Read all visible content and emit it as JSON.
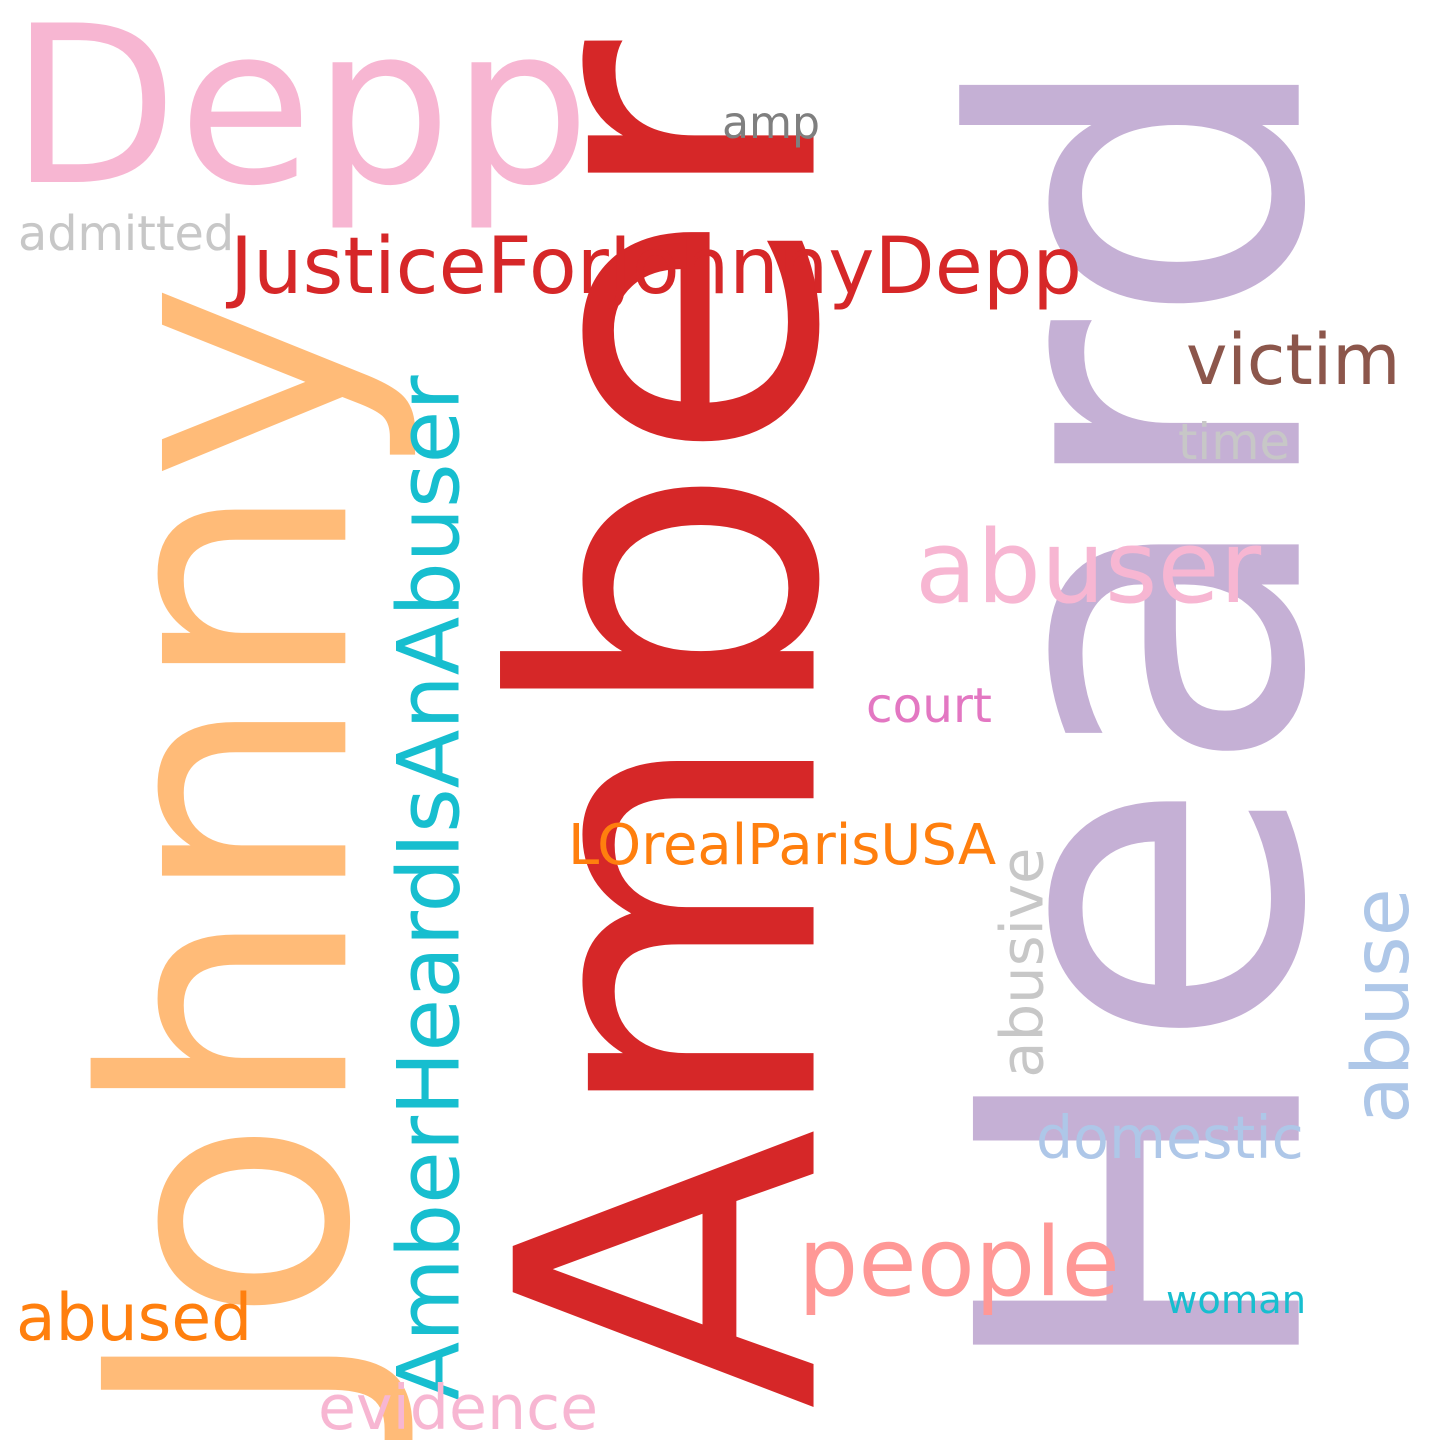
{
  "word_cloud": {
    "words": [
      {
        "text": "Amber",
        "color": "#d62728",
        "vertical": true
      },
      {
        "text": "Heard",
        "color": "#c5b0d5",
        "vertical": true
      },
      {
        "text": "Johnny",
        "color": "#ffbb78",
        "vertical": true
      },
      {
        "text": "Depp",
        "color": "#f7b6d2",
        "vertical": false
      },
      {
        "text": "JusticeForJohnnyDepp",
        "color": "#d62728",
        "vertical": false
      },
      {
        "text": "AmberHeardIsAnAbuser",
        "color": "#17becf",
        "vertical": true
      },
      {
        "text": "abuser",
        "color": "#f7b6d2",
        "vertical": false
      },
      {
        "text": "victim",
        "color": "#8c564b",
        "vertical": false
      },
      {
        "text": "people",
        "color": "#ff9896",
        "vertical": false
      },
      {
        "text": "abused",
        "color": "#ff7f0e",
        "vertical": false
      },
      {
        "text": "LOrealParisUSA",
        "color": "#ff7f0e",
        "vertical": false
      },
      {
        "text": "abuse",
        "color": "#aec7e8",
        "vertical": true
      },
      {
        "text": "domestic",
        "color": "#aec7e8",
        "vertical": false
      },
      {
        "text": "abusive",
        "color": "#c7c7c7",
        "vertical": true
      },
      {
        "text": "amp",
        "color": "#7f7f7f",
        "vertical": false
      },
      {
        "text": "evidence",
        "color": "#f7b6d2",
        "vertical": false
      },
      {
        "text": "court",
        "color": "#e377c2",
        "vertical": false
      },
      {
        "text": "time",
        "color": "#c7c7c7",
        "vertical": false
      },
      {
        "text": "admitted",
        "color": "#c7c7c7",
        "vertical": false
      },
      {
        "text": "woman",
        "color": "#17becf",
        "vertical": false
      }
    ]
  }
}
